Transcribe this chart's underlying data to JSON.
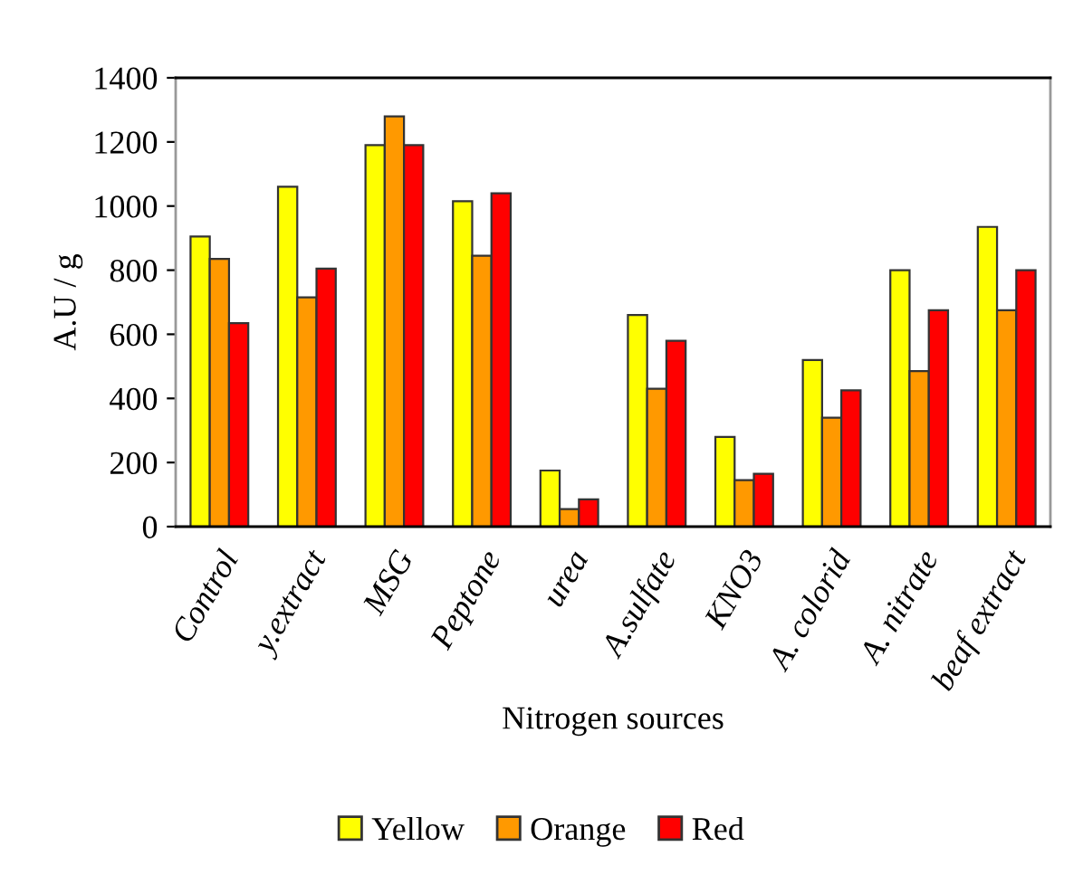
{
  "chart_data": {
    "type": "bar",
    "xlabel": "Nitrogen sources",
    "ylabel": "A.U / g",
    "categories": [
      "Control",
      "y.extract",
      "MSG",
      "Peptone",
      "urea",
      "A.sulfate",
      "KNO3",
      "A. colorid",
      "A. nitrate",
      "beaf extract"
    ],
    "series": [
      {
        "name": "Yellow",
        "color": "#ffff00",
        "values": [
          905,
          1060,
          1190,
          1015,
          175,
          660,
          280,
          520,
          800,
          935
        ]
      },
      {
        "name": "Orange",
        "color": "#ff9900",
        "values": [
          835,
          715,
          1280,
          845,
          55,
          430,
          145,
          340,
          485,
          675
        ]
      },
      {
        "name": "Red",
        "color": "#ff0000",
        "values": [
          635,
          805,
          1190,
          1040,
          85,
          580,
          165,
          425,
          675,
          800
        ]
      }
    ],
    "ylim": [
      0,
      1400
    ],
    "yticks": [
      0,
      200,
      400,
      600,
      800,
      1000,
      1200,
      1400
    ],
    "grid": false,
    "legend": "bottom"
  }
}
